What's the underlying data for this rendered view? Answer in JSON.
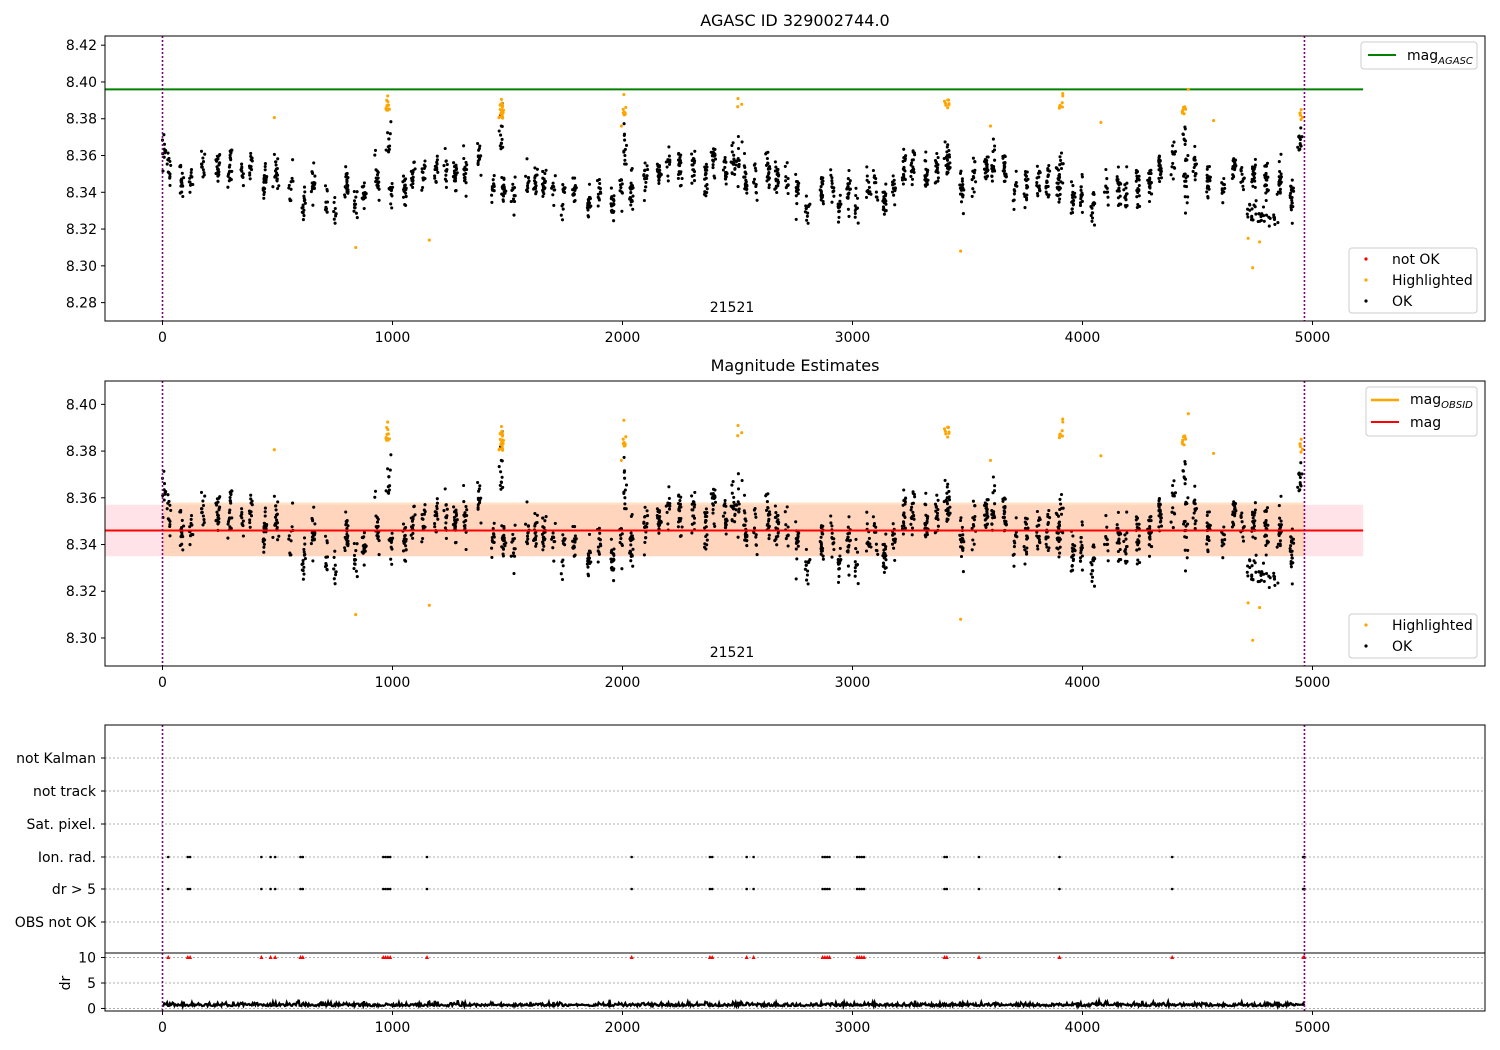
{
  "chart_data": [
    {
      "type": "scatter",
      "title": "AGASC ID 329002744.0",
      "xlim": [
        -250,
        5750
      ],
      "ylim": [
        8.27,
        8.425
      ],
      "xticks": [
        0,
        1000,
        2000,
        3000,
        4000,
        5000
      ],
      "xtick_labels": [
        "0",
        "1000",
        "2000",
        "3000",
        "4000",
        "5000"
      ],
      "yticks": [
        8.28,
        8.3,
        8.32,
        8.34,
        8.36,
        8.38,
        8.4,
        8.42
      ],
      "ytick_labels": [
        "8.28",
        "8.30",
        "8.32",
        "8.34",
        "8.36",
        "8.38",
        "8.40",
        "8.42"
      ],
      "vlines": [
        0,
        4965
      ],
      "obsid_label": "21521",
      "obsid_label_x": 2480,
      "mag_agasc": 8.396,
      "hline_xrange": [
        -250,
        5220
      ],
      "series": [
        {
          "name": "not OK",
          "color": "#ff0000",
          "values": []
        },
        {
          "name": "Highlighted",
          "color": "#ffa500",
          "values": []
        },
        {
          "name": "OK",
          "color": "#000000",
          "values": []
        }
      ],
      "legend_top": {
        "entries": [
          "mag_AGASC"
        ],
        "position": "upper right"
      },
      "legend_bottom": {
        "entries": [
          "not OK",
          "Highlighted",
          "OK"
        ],
        "position": "lower right"
      }
    },
    {
      "type": "scatter",
      "title": "Magnitude Estimates",
      "xlim": [
        -250,
        5750
      ],
      "ylim": [
        8.288,
        8.41
      ],
      "xticks": [
        0,
        1000,
        2000,
        3000,
        4000,
        5000
      ],
      "xtick_labels": [
        "0",
        "1000",
        "2000",
        "3000",
        "4000",
        "5000"
      ],
      "yticks": [
        8.3,
        8.32,
        8.34,
        8.36,
        8.38,
        8.4
      ],
      "ytick_labels": [
        "8.30",
        "8.32",
        "8.34",
        "8.36",
        "8.38",
        "8.40"
      ],
      "vlines": [
        0,
        4965
      ],
      "obsid_label": "21521",
      "mag": 8.346,
      "mag_band": [
        8.335,
        8.357
      ],
      "mag_obsid_band": [
        8.335,
        8.358
      ],
      "series": [
        {
          "name": "Highlighted",
          "color": "#ffa500"
        },
        {
          "name": "OK",
          "color": "#000000"
        }
      ],
      "legend_top": {
        "entries": [
          "mag_OBSID",
          "mag"
        ],
        "position": "upper right"
      },
      "legend_bottom": {
        "entries": [
          "Highlighted",
          "OK"
        ],
        "position": "lower right"
      }
    },
    {
      "type": "scatter",
      "title": "",
      "xlim": [
        -250,
        5750
      ],
      "xticks": [
        0,
        1000,
        2000,
        3000,
        4000,
        5000
      ],
      "xtick_labels": [
        "0",
        "1000",
        "2000",
        "3000",
        "4000",
        "5000"
      ],
      "vlines": [
        0,
        4965
      ],
      "flag_rows": [
        "not Kalman",
        "not track",
        "Sat. pixel.",
        "Ion. rad.",
        "dr > 5",
        "OBS not OK"
      ],
      "flag_times": [
        25,
        110,
        120,
        430,
        470,
        490,
        600,
        610,
        960,
        970,
        980,
        990,
        1150,
        2040,
        2380,
        2390,
        2540,
        2570,
        2870,
        2880,
        2890,
        2900,
        3020,
        3030,
        3040,
        3050,
        3400,
        3410,
        3550,
        3900,
        4390,
        4960,
        4965
      ],
      "dr_ylabel": "dr",
      "dr_yticks": [
        0,
        5,
        10
      ],
      "dr_ytick_labels": [
        "0",
        "5",
        "10"
      ],
      "dr_ylim": [
        -0.5,
        10.5
      ]
    }
  ],
  "labels": {
    "legend_mag": "mag",
    "legend_agasc_sub": "AGASC",
    "legend_obsid_sub": "OBSID",
    "not_ok": "not OK",
    "highlighted": "Highlighted",
    "ok": "OK"
  },
  "colors": {
    "ok": "#000000",
    "highlighted": "#ffa500",
    "not_ok": "#ff0000",
    "mag_agasc_line": "#008000",
    "mag_line": "#ff0000",
    "mag_obsid_line": "#ffa500",
    "vline": "#800080",
    "band_pink": "#ffc0cb",
    "band_orange": "#ffcc99"
  }
}
